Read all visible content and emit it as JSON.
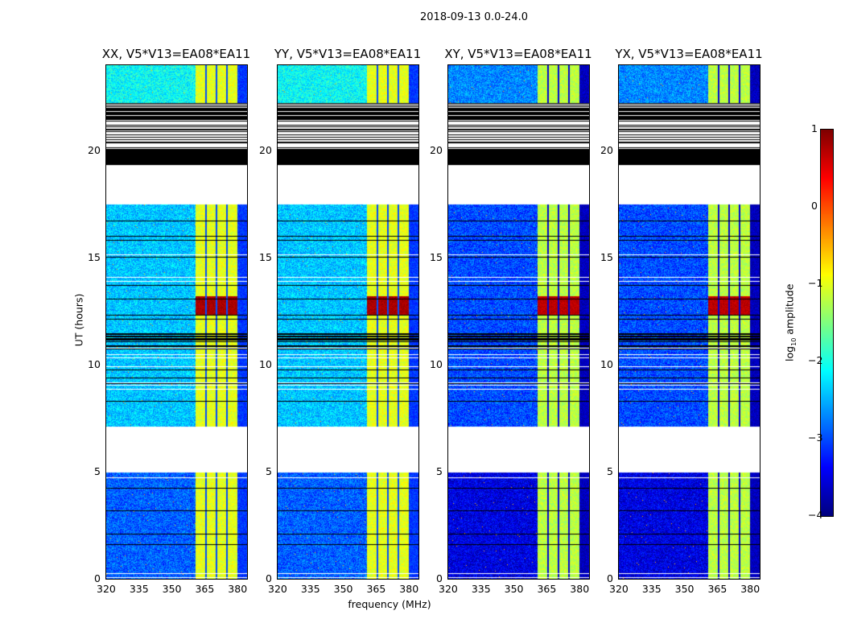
{
  "chart_data": {
    "type": "heatmap",
    "title": "2018-09-13 0.0-24.0",
    "xlabel": "frequency (MHz)",
    "ylabel": "UT (hours)",
    "xlim": [
      320,
      384.3
    ],
    "ylim": [
      0,
      24
    ],
    "xticks": [
      320,
      335,
      350,
      365,
      380
    ],
    "yticks": [
      0,
      5,
      10,
      15,
      20
    ],
    "panels": [
      {
        "title": "XX, V5*V13=EA08*EA11",
        "base_level": -2.4,
        "band_level": -1.0,
        "flare_level": 0.8
      },
      {
        "title": "YY, V5*V13=EA08*EA11",
        "base_level": -2.4,
        "band_level": -1.0,
        "flare_level": 0.8
      },
      {
        "title": "XY, V5*V13=EA08*EA11",
        "base_level": -3.0,
        "band_level": -1.2,
        "flare_level": 0.7
      },
      {
        "title": "YX, V5*V13=EA08*EA11",
        "base_level": -3.0,
        "band_level": -1.2,
        "flare_level": 0.7
      }
    ],
    "time_segments": [
      {
        "start": 0,
        "end": 4.95,
        "state": "data"
      },
      {
        "start": 4.95,
        "end": 7.1,
        "state": "blank"
      },
      {
        "start": 7.1,
        "end": 10.8,
        "state": "data"
      },
      {
        "start": 10.8,
        "end": 11.5,
        "state": "flagged-dense"
      },
      {
        "start": 11.5,
        "end": 17.5,
        "state": "data"
      },
      {
        "start": 17.5,
        "end": 19.35,
        "state": "blank"
      },
      {
        "start": 19.35,
        "end": 22.25,
        "state": "flagged-stripes"
      },
      {
        "start": 22.25,
        "end": 24,
        "state": "data"
      }
    ],
    "bright_band_channels": [
      [
        360.7,
        365.0
      ],
      [
        365.6,
        369.8
      ],
      [
        370.4,
        374.6
      ],
      [
        375.2,
        379.6
      ]
    ],
    "flare_time": [
      12.3,
      13.2
    ],
    "colorbar": {
      "label": "log10 amplitude",
      "label_main": "log",
      "label_sub": "10",
      "label_rest": " amplitude",
      "range": [
        -4,
        1
      ],
      "ticks": [
        "1",
        "0",
        "−1",
        "−2",
        "−3",
        "−4"
      ],
      "tick_values": [
        1,
        0,
        -1,
        -2,
        -3,
        -4
      ],
      "colormap": "jet"
    }
  }
}
